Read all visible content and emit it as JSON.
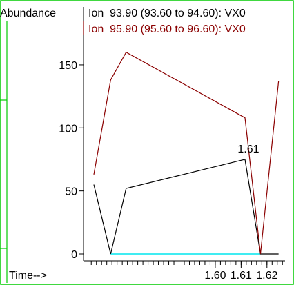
{
  "chart_data": {
    "type": "line",
    "ylabel": "Abundance",
    "xlabel": "Time-->",
    "xlim": [
      1.549,
      1.627
    ],
    "ylim": [
      0,
      185
    ],
    "x_ticks": [
      1.6,
      1.61,
      1.62
    ],
    "x_tick_labels": [
      "1.60",
      "1.61",
      "1.62"
    ],
    "y_ticks": [
      0,
      50,
      100,
      150
    ],
    "y_tick_labels": [
      "0",
      "50",
      "100",
      "150"
    ],
    "series": [
      {
        "name": "Ion  93.90 (93.60 to 94.60): VX0",
        "color": "#000000",
        "x": [
          1.553,
          1.5595,
          1.5655,
          1.6115,
          1.6175,
          1.6245
        ],
        "y": [
          55,
          0,
          52,
          75,
          0,
          0
        ]
      },
      {
        "name": "Ion  95.90 (95.60 to 96.60): VX0",
        "color": "#8b0000",
        "x": [
          1.553,
          1.5595,
          1.5655,
          1.6115,
          1.6175,
          1.6245
        ],
        "y": [
          63,
          138,
          160,
          108,
          0,
          137
        ]
      }
    ],
    "baseline": {
      "color": "#00e5ee",
      "x": [
        1.5595,
        1.6175
      ],
      "y": [
        0,
        0
      ]
    },
    "annotations": [
      {
        "text": "1.61",
        "x": 1.6115,
        "y": 75
      }
    ],
    "grid": false,
    "legend": "top-right"
  },
  "frame": {
    "border_color": "#00cc00"
  }
}
